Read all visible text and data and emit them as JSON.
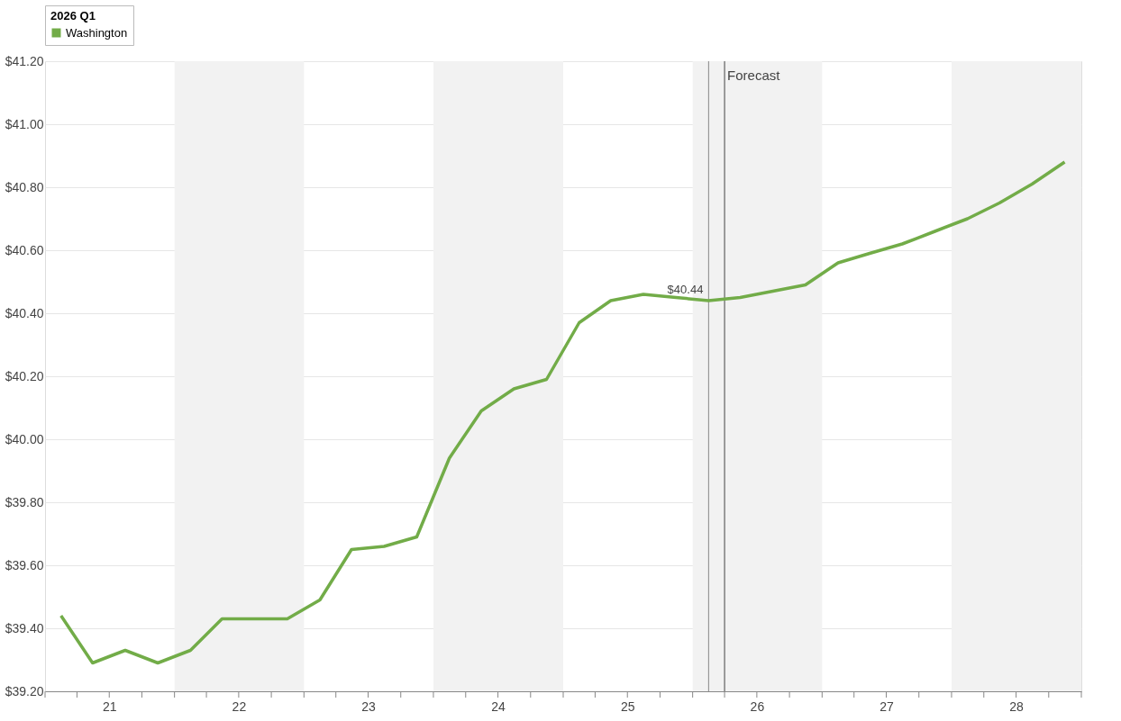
{
  "chart_data": {
    "type": "line",
    "x": [
      "2021-02-15",
      "2021-05-15",
      "2021-08-15",
      "2021-11-15",
      "2022-02-15",
      "2022-05-15",
      "2022-08-15",
      "2022-11-15",
      "2023-02-15",
      "2023-05-15",
      "2023-08-15",
      "2023-11-15",
      "2024-02-15",
      "2024-05-15",
      "2024-08-15",
      "2024-11-15",
      "2025-02-15",
      "2025-05-15",
      "2025-08-15",
      "2025-11-15",
      "2026-02-15",
      "2026-05-15",
      "2026-08-15",
      "2026-11-15",
      "2027-02-15",
      "2027-05-15",
      "2027-08-15",
      "2027-11-15",
      "2028-02-15",
      "2028-05-15",
      "2028-08-15",
      "2028-11-15"
    ],
    "series": [
      {
        "name": "Washington",
        "color": "#72ac48",
        "values": [
          39.44,
          39.29,
          39.33,
          39.29,
          39.33,
          39.43,
          39.43,
          39.43,
          39.49,
          39.65,
          39.66,
          39.69,
          39.94,
          40.09,
          40.16,
          40.19,
          40.37,
          40.44,
          40.46,
          40.45,
          40.44,
          40.45,
          40.47,
          40.49,
          40.56,
          40.59,
          40.62,
          40.66,
          40.7,
          40.75,
          40.81,
          40.88
        ]
      }
    ],
    "legend_title": "2026 Q1",
    "legend": "top",
    "xlim": [
      "2021-01-01",
      "2029-01-01"
    ],
    "xticks": [
      {
        "value": "2021-01-01",
        "label": null
      },
      {
        "value": "2021-04-01",
        "label": null
      },
      {
        "value": "2021-07-01",
        "label": "21"
      },
      {
        "value": "2021-10-01",
        "label": null
      },
      {
        "value": "2022-01-01",
        "label": null
      },
      {
        "value": "2022-04-01",
        "label": null
      },
      {
        "value": "2022-07-01",
        "label": "22"
      },
      {
        "value": "2022-10-01",
        "label": null
      },
      {
        "value": "2023-01-01",
        "label": null
      },
      {
        "value": "2023-04-01",
        "label": null
      },
      {
        "value": "2023-07-01",
        "label": "23"
      },
      {
        "value": "2023-10-01",
        "label": null
      },
      {
        "value": "2024-01-01",
        "label": null
      },
      {
        "value": "2024-04-01",
        "label": null
      },
      {
        "value": "2024-07-01",
        "label": "24"
      },
      {
        "value": "2024-10-01",
        "label": null
      },
      {
        "value": "2025-01-01",
        "label": null
      },
      {
        "value": "2025-04-01",
        "label": null
      },
      {
        "value": "2025-07-01",
        "label": "25"
      },
      {
        "value": "2025-10-01",
        "label": null
      },
      {
        "value": "2026-01-01",
        "label": null
      },
      {
        "value": "2026-04-01",
        "label": null
      },
      {
        "value": "2026-07-01",
        "label": "26"
      },
      {
        "value": "2026-10-01",
        "label": null
      },
      {
        "value": "2027-01-01",
        "label": null
      },
      {
        "value": "2027-04-01",
        "label": null
      },
      {
        "value": "2027-07-01",
        "label": "27"
      },
      {
        "value": "2027-10-01",
        "label": null
      },
      {
        "value": "2028-01-01",
        "label": null
      },
      {
        "value": "2028-04-01",
        "label": null
      },
      {
        "value": "2028-07-01",
        "label": "28"
      },
      {
        "value": "2028-10-01",
        "label": null
      },
      {
        "value": "2029-01-01",
        "label": null
      }
    ],
    "ylim": [
      39.2,
      41.2
    ],
    "yticks": [
      {
        "value": 39.2,
        "label": "$39.20"
      },
      {
        "value": 39.4,
        "label": "$39.40"
      },
      {
        "value": 39.6,
        "label": "$39.60"
      },
      {
        "value": 39.8,
        "label": "$39.80"
      },
      {
        "value": 40.0,
        "label": "$40.00"
      },
      {
        "value": 40.2,
        "label": "$40.20"
      },
      {
        "value": 40.4,
        "label": "$40.40"
      },
      {
        "value": 40.6,
        "label": "$40.60"
      },
      {
        "value": 40.8,
        "label": "$40.80"
      },
      {
        "value": 41.0,
        "label": "$41.00"
      },
      {
        "value": 41.2,
        "label": "$41.20"
      }
    ],
    "grid": "y",
    "bands": [
      {
        "axis": "x",
        "from": "2022-01-01",
        "to": "2023-01-01",
        "color": "#f2f2f2"
      },
      {
        "axis": "x",
        "from": "2024-01-01",
        "to": "2025-01-01",
        "color": "#f2f2f2"
      },
      {
        "axis": "x",
        "from": "2026-01-01",
        "to": "2027-01-01",
        "color": "#f2f2f2"
      },
      {
        "axis": "x",
        "from": "2028-01-01",
        "to": "2029-01-01",
        "color": "#f2f2f2"
      }
    ],
    "ref_lines": [
      {
        "axis": "x",
        "value": "2026-02-15",
        "color": "#888888"
      },
      {
        "axis": "x",
        "value": "2026-04-01",
        "label": "Forecast",
        "color": "#444444"
      }
    ],
    "annotations": [
      {
        "text": "$40.44",
        "x": "2026-02-15",
        "y": 40.44
      }
    ]
  }
}
